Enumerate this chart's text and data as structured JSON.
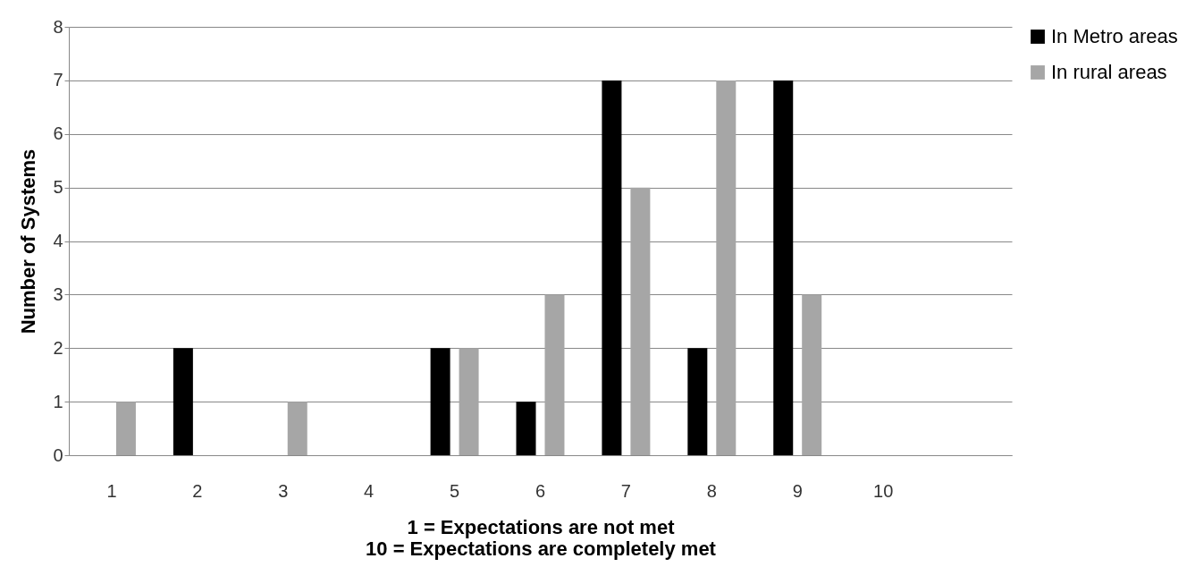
{
  "chart_data": {
    "type": "bar",
    "categories": [
      "1",
      "2",
      "3",
      "4",
      "5",
      "6",
      "7",
      "8",
      "9",
      "10",
      null
    ],
    "series": [
      {
        "name": "In Metro areas",
        "color": "#000000",
        "values": [
          0,
          2,
          0,
          0,
          2,
          1,
          7,
          2,
          7,
          0,
          0
        ]
      },
      {
        "name": "In rural areas",
        "color": "#a6a6a6",
        "values": [
          1,
          0,
          1,
          0,
          2,
          3,
          5,
          7,
          3,
          0,
          0
        ]
      }
    ],
    "ylabel": "Number of Systems",
    "xlabel": "1 = Expectations are not met\n10 = Expectations are completely met",
    "ylim": [
      0,
      8
    ],
    "yticks": [
      0,
      1,
      2,
      3,
      4,
      5,
      6,
      7,
      8
    ],
    "grid": "y",
    "legend": "right"
  }
}
